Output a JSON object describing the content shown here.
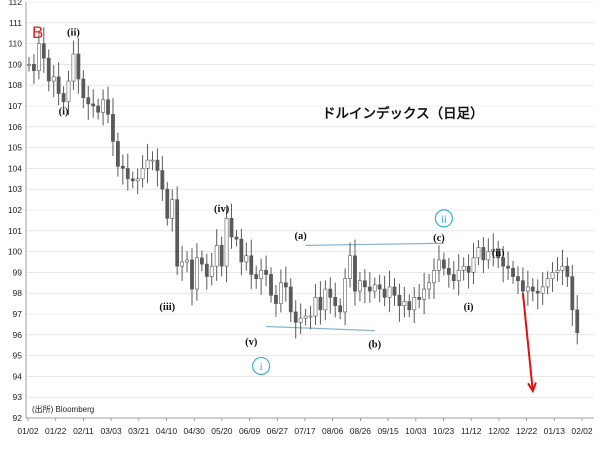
{
  "chart_data": {
    "type": "candlestick",
    "title": "ドルインデックス（日足）",
    "source": "(出所) Bloomberg",
    "corner_label": "B",
    "ylim": [
      92,
      112
    ],
    "yticks": [
      92,
      93,
      94,
      95,
      96,
      97,
      98,
      99,
      100,
      101,
      102,
      103,
      104,
      105,
      106,
      107,
      108,
      109,
      110,
      111,
      112
    ],
    "x_tick_labels": [
      "01/02",
      "01/22",
      "02/11",
      "03/03",
      "03/21",
      "04/10",
      "04/30",
      "05/20",
      "06/09",
      "06/27",
      "07/17",
      "08/06",
      "08/26",
      "09/15",
      "10/03",
      "10/23",
      "11/12",
      "12/02",
      "12/22",
      "01/13",
      "02/02"
    ],
    "grid": true,
    "series": [
      {
        "values": [
          [
            0,
            109
          ],
          [
            1,
            108.7
          ],
          [
            2,
            110
          ],
          [
            3,
            109.3
          ],
          [
            4,
            108.2
          ],
          [
            5,
            108.4
          ],
          [
            6,
            107.6
          ],
          [
            7,
            107.2
          ],
          [
            8,
            108.2
          ],
          [
            9,
            109.5
          ],
          [
            10,
            108.3
          ],
          [
            11,
            107.4
          ],
          [
            12,
            107.1
          ],
          [
            13,
            107
          ],
          [
            14,
            106.7
          ],
          [
            15,
            107.3
          ],
          [
            16,
            106.6
          ],
          [
            17,
            105.3
          ],
          [
            18,
            104.1
          ],
          [
            19,
            104
          ],
          [
            20,
            103.5
          ],
          [
            21,
            103.4
          ],
          [
            22,
            103.5
          ],
          [
            23,
            104
          ],
          [
            24,
            104.4
          ],
          [
            25,
            104.4
          ],
          [
            26,
            103.9
          ],
          [
            27,
            103
          ],
          [
            28,
            101.6
          ],
          [
            29,
            102.5
          ],
          [
            30,
            99.3
          ],
          [
            31,
            99.5
          ],
          [
            32,
            99.6
          ],
          [
            33,
            98.2
          ],
          [
            34,
            99.7
          ],
          [
            35,
            99.4
          ],
          [
            36,
            98.8
          ],
          [
            37,
            99.3
          ],
          [
            38,
            100.3
          ],
          [
            39,
            99.3
          ],
          [
            40,
            101.6
          ],
          [
            41,
            100.7
          ],
          [
            42,
            100.6
          ],
          [
            43,
            99.5
          ],
          [
            44,
            99.8
          ],
          [
            45,
            98.9
          ],
          [
            46,
            98.7
          ],
          [
            47,
            99.1
          ],
          [
            48,
            98.9
          ],
          [
            49,
            97.9
          ],
          [
            50,
            97.5
          ],
          [
            51,
            98.5
          ],
          [
            52,
            98.3
          ],
          [
            53,
            97.1
          ],
          [
            54,
            96.6
          ],
          [
            55,
            96.8
          ],
          [
            56,
            96.9
          ],
          [
            57,
            96.9
          ],
          [
            58,
            97.8
          ],
          [
            59,
            97.2
          ],
          [
            60,
            98.2
          ],
          [
            61,
            97.8
          ],
          [
            62,
            97.4
          ],
          [
            63,
            97.1
          ],
          [
            64,
            98.7
          ],
          [
            65,
            99.8
          ],
          [
            66,
            98.1
          ],
          [
            67,
            98.6
          ],
          [
            68,
            98.3
          ],
          [
            69,
            98.1
          ],
          [
            70,
            98.4
          ],
          [
            71,
            98.2
          ],
          [
            72,
            97.8
          ],
          [
            73,
            98.3
          ],
          [
            74,
            97.9
          ],
          [
            75,
            97.4
          ],
          [
            76,
            97.6
          ],
          [
            77,
            97.2
          ],
          [
            78,
            97.8
          ],
          [
            79,
            97.7
          ],
          [
            80,
            98.2
          ],
          [
            81,
            98.5
          ],
          [
            82,
            99.1
          ],
          [
            83,
            99.6
          ],
          [
            84,
            99.2
          ],
          [
            85,
            98.9
          ],
          [
            86,
            98.6
          ],
          [
            87,
            99.1
          ],
          [
            88,
            99.3
          ],
          [
            89,
            99
          ],
          [
            90,
            99.7
          ],
          [
            91,
            100.2
          ],
          [
            92,
            99.6
          ],
          [
            93,
            100
          ],
          [
            94,
            100.1
          ],
          [
            95,
            99.7
          ],
          [
            96,
            99.3
          ],
          [
            97,
            99.2
          ],
          [
            98,
            98.8
          ],
          [
            99,
            98.6
          ],
          [
            100,
            98.1
          ],
          [
            101,
            98.3
          ],
          [
            102,
            98.1
          ],
          [
            103,
            98
          ],
          [
            104,
            98.3
          ],
          [
            105,
            98.7
          ],
          [
            106,
            99
          ],
          [
            107,
            99.1
          ],
          [
            108,
            99.3
          ],
          [
            109,
            98.8
          ],
          [
            110,
            97.2
          ],
          [
            111,
            96.1
          ]
        ]
      }
    ],
    "wave_labels": [
      {
        "text": "(ii)",
        "x": 9,
        "y": 110.4
      },
      {
        "text": "(i)",
        "x": 7,
        "y": 106.6
      },
      {
        "text": "(iii)",
        "x": 28,
        "y": 97.2
      },
      {
        "text": "(iv)",
        "x": 39,
        "y": 101.9
      },
      {
        "text": "(v)",
        "x": 45,
        "y": 95.5
      },
      {
        "text": "(a)",
        "x": 55,
        "y": 100.6
      },
      {
        "text": "(b)",
        "x": 70,
        "y": 95.4
      },
      {
        "text": "(c)",
        "x": 83,
        "y": 100.5
      },
      {
        "text": "(i)",
        "x": 89,
        "y": 97.2
      },
      {
        "text": "(ii)",
        "x": 95,
        "y": 99.8
      }
    ],
    "circled_labels": [
      {
        "text": "i",
        "x": 47,
        "y": 94.5
      },
      {
        "text": "ii",
        "x": 84,
        "y": 101.6
      }
    ],
    "trendlines": [
      {
        "from": [
          48,
          96.4
        ],
        "to": [
          70,
          96.2
        ]
      },
      {
        "from": [
          56,
          100.3
        ],
        "to": [
          84,
          100.4
        ]
      }
    ],
    "arrow": {
      "from": [
        100,
        98
      ],
      "to": [
        102,
        93.3
      ]
    },
    "colors": {
      "candle": "#5a5a5a",
      "trendline": "#8ab4cc",
      "circle": "#2aa7d9",
      "arrow": "#e01010",
      "corner_label": "#e02020",
      "grid": "#d9d9d9"
    }
  }
}
